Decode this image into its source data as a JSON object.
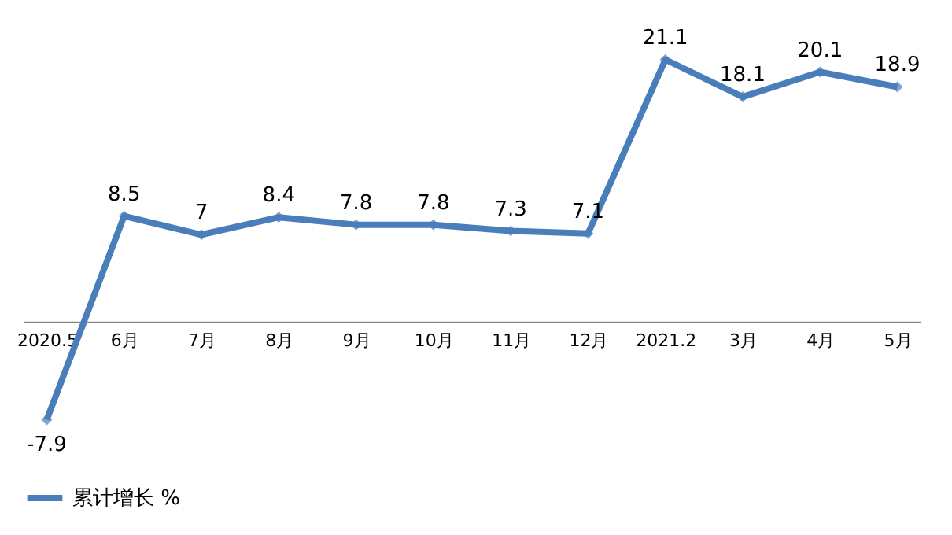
{
  "chart_data": {
    "type": "line",
    "categories": [
      "2020.5",
      "6月",
      "7月",
      "8月",
      "9月",
      "10月",
      "11月",
      "12月",
      "2021.2",
      "3月",
      "4月",
      "5月"
    ],
    "series": [
      {
        "name": "累计增长 %",
        "color": "#4a7ebb",
        "values": [
          -7.9,
          8.5,
          7,
          8.4,
          7.8,
          7.8,
          7.3,
          7.1,
          21.1,
          18.1,
          20.1,
          18.9
        ]
      }
    ],
    "data_labels": true,
    "marker": "diamond",
    "line_style": "solid",
    "legend": "bottom",
    "grid": false
  }
}
